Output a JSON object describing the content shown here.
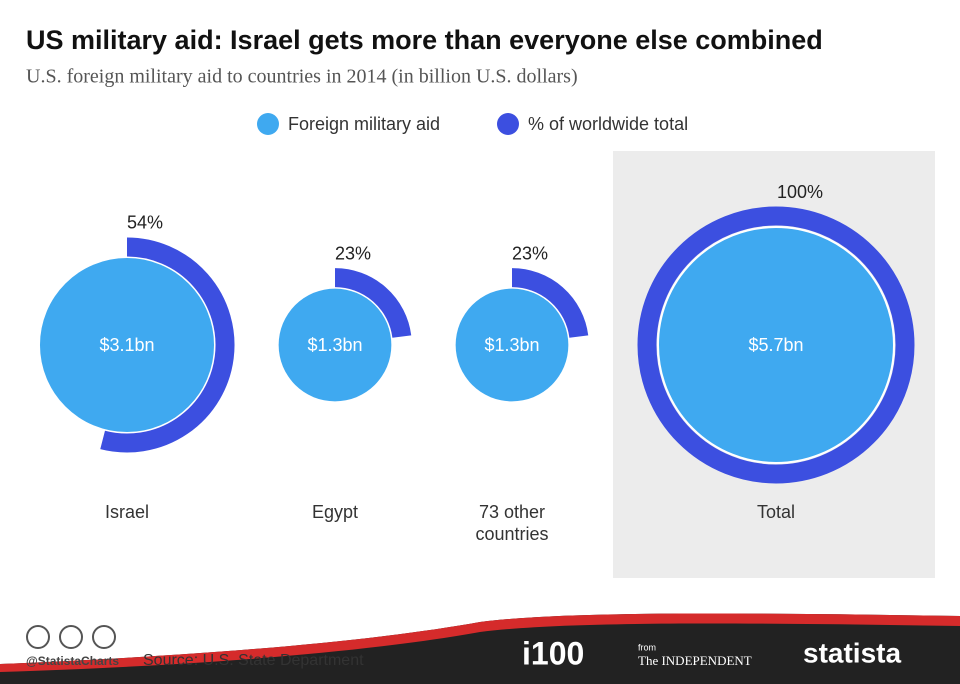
{
  "chart_data": {
    "type": "bubble",
    "title": "US military aid: Israel gets more than everyone else combined",
    "subtitle": "U.S. foreign military aid to countries in 2014 (in billion U.S. dollars)",
    "categories": [
      "Israel",
      "Egypt",
      "73 other countries",
      "Total"
    ],
    "series": [
      {
        "name": "Foreign military aid",
        "color": "#3fa9f0",
        "values": [
          3.1,
          1.3,
          1.3,
          5.7
        ],
        "value_labels": [
          "$3.1bn",
          "$1.3bn",
          "$1.3bn",
          "$5.7bn"
        ]
      },
      {
        "name": "% of worldwide total",
        "color": "#3c4fe0",
        "values": [
          54,
          23,
          23,
          100
        ],
        "value_labels": [
          "54%",
          "23%",
          "23%",
          "100%"
        ]
      }
    ]
  },
  "footer": {
    "handle": "@StatistaCharts",
    "source": "Source: U.S. State Department",
    "logo_i100": "i100",
    "from": "from",
    "independent": "The INDEPENDENT",
    "statista": "statista"
  }
}
